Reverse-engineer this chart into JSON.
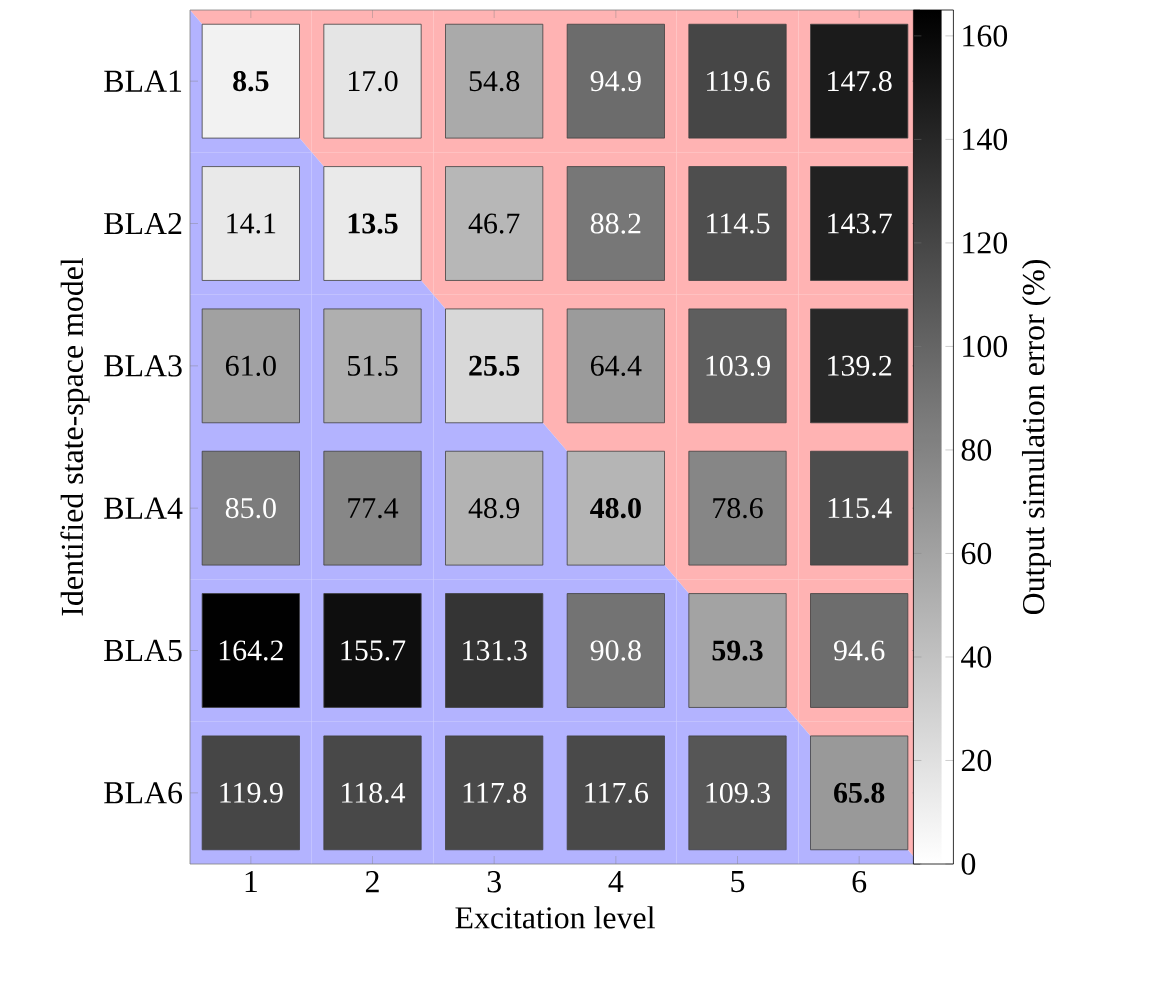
{
  "chart_data": {
    "type": "heatmap",
    "xlabel": "Excitation level",
    "ylabel": "Identified state-space model",
    "clabel": "Output simulation error (%)",
    "categories": [
      "1",
      "2",
      "3",
      "4",
      "5",
      "6"
    ],
    "y_categories": [
      "BLA1",
      "BLA2",
      "BLA3",
      "BLA4",
      "BLA5",
      "BLA6"
    ],
    "cells": [
      [
        8.5,
        17.0,
        54.8,
        94.9,
        119.6,
        147.8
      ],
      [
        14.1,
        13.5,
        46.7,
        88.2,
        114.5,
        143.7
      ],
      [
        61.0,
        51.5,
        25.5,
        64.4,
        103.9,
        139.2
      ],
      [
        85.0,
        77.4,
        48.9,
        48.0,
        78.6,
        115.4
      ],
      [
        164.2,
        155.7,
        131.3,
        90.8,
        59.3,
        94.6
      ],
      [
        119.9,
        118.4,
        117.8,
        117.6,
        109.3,
        65.8
      ]
    ],
    "cell_labels": [
      [
        "**8.5**",
        "17.0",
        "54.8",
        "94.9",
        "119.6",
        "147.8"
      ],
      [
        "14.1",
        "**13.5**",
        "46.7",
        "88.2",
        "114.5",
        "143.7"
      ],
      [
        "61.0",
        "51.5",
        "**25.5**",
        "64.4",
        "103.9",
        "139.2"
      ],
      [
        "85.0",
        "77.4",
        "48.9",
        "**48.0**",
        "78.6",
        "115.4"
      ],
      [
        "164.2",
        "155.7",
        "131.3",
        "90.8",
        "**59.3**",
        "94.6"
      ],
      [
        "119.9",
        "118.4",
        "117.8",
        "117.6",
        "109.3",
        "**65.8**"
      ]
    ],
    "clim": [
      0,
      165
    ],
    "cticks": [
      0,
      20,
      40,
      60,
      80,
      100,
      120,
      140,
      160
    ]
  }
}
